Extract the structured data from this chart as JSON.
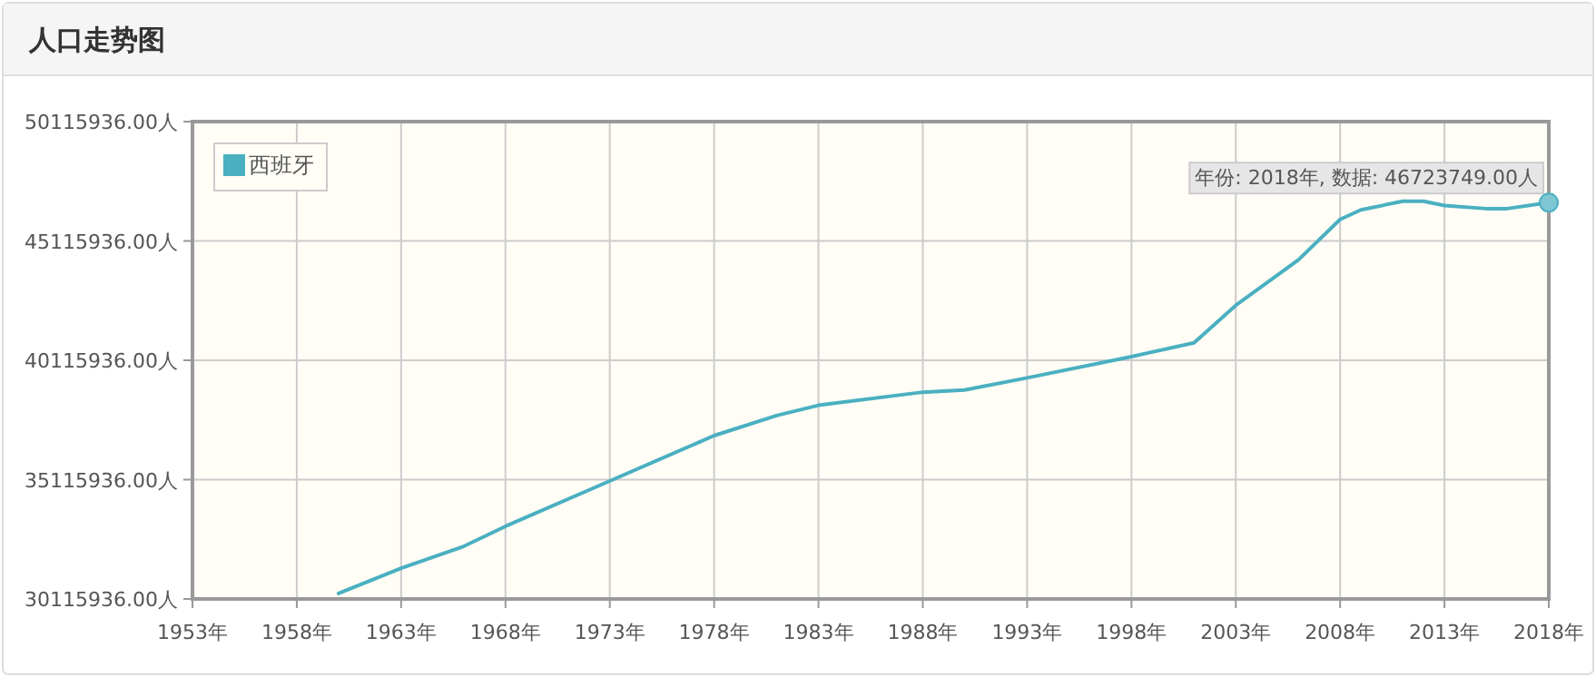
{
  "chart_data": {
    "type": "line",
    "title": "人口走势图",
    "xlim": [
      1953,
      2018
    ],
    "xticks": [
      {
        "value": 1953,
        "label": "1953年"
      },
      {
        "value": 1958,
        "label": "1958年"
      },
      {
        "value": 1963,
        "label": "1963年"
      },
      {
        "value": 1968,
        "label": "1968年"
      },
      {
        "value": 1973,
        "label": "1973年"
      },
      {
        "value": 1978,
        "label": "1978年"
      },
      {
        "value": 1983,
        "label": "1983年"
      },
      {
        "value": 1988,
        "label": "1988年"
      },
      {
        "value": 1993,
        "label": "1993年"
      },
      {
        "value": 1998,
        "label": "1998年"
      },
      {
        "value": 2003,
        "label": "2003年"
      },
      {
        "value": 2008,
        "label": "2008年"
      },
      {
        "value": 2013,
        "label": "2013年"
      },
      {
        "value": 2018,
        "label": "2018年"
      }
    ],
    "ylim": [
      30115936,
      50115936
    ],
    "yticks": [
      {
        "value": 30115936,
        "label": "30115936.00人"
      },
      {
        "value": 35115936,
        "label": "35115936.00人"
      },
      {
        "value": 40115936,
        "label": "40115936.00人"
      },
      {
        "value": 45115936,
        "label": "45115936.00人"
      },
      {
        "value": 50115936,
        "label": "50115936.00人"
      }
    ],
    "grid": true,
    "legend": "top left",
    "series": [
      {
        "name": "西班牙",
        "color": "#4ab0c1",
        "x": [
          1960,
          1963,
          1966,
          1968,
          1973,
          1978,
          1981,
          1983,
          1988,
          1990,
          1993,
          1998,
          2001,
          2003,
          2006,
          2008,
          2009,
          2011,
          2012,
          2013,
          2015,
          2016,
          2018
        ],
        "values": [
          30350000,
          31400000,
          32320000,
          33160000,
          35060000,
          36960000,
          37800000,
          38230000,
          38780000,
          38870000,
          39380000,
          40270000,
          40850000,
          42420000,
          44320000,
          46020000,
          46420000,
          46780000,
          46780000,
          46600000,
          46470000,
          46470000,
          46723749
        ]
      }
    ],
    "annotations": [
      {
        "text": "年份: 2018年, 数据: 46723749.00人",
        "x": 2018,
        "y": 46723749
      }
    ]
  }
}
